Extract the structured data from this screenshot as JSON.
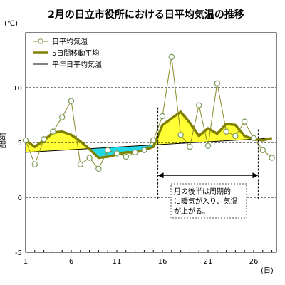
{
  "chart_data": {
    "type": "line",
    "title": "2月の日立市役所における日平均気温の推移",
    "unit_y": "(℃)",
    "unit_x": "(日)",
    "ylabel": "気温",
    "ylim": [
      -5,
      15
    ],
    "yticks": [
      -5,
      0,
      5,
      10
    ],
    "xlim": [
      1,
      28.5
    ],
    "xticks": [
      1,
      6,
      11,
      16,
      21,
      26
    ],
    "grid": "dashed horizontal at 0, 5, 10",
    "legend_position": "top-left",
    "series": [
      {
        "name": "日平均気温",
        "color": "#8a8a2a",
        "marker": "circle",
        "x": [
          1,
          2,
          3,
          4,
          5,
          6,
          7,
          8,
          9,
          10,
          11,
          12,
          13,
          14,
          15,
          16,
          17,
          18,
          19,
          20,
          21,
          22,
          23,
          24,
          25,
          26,
          27,
          28
        ],
        "values": [
          5.2,
          3.0,
          5.3,
          6.0,
          7.3,
          8.8,
          3.0,
          3.6,
          2.6,
          4.3,
          4.0,
          3.7,
          4.1,
          4.3,
          5.2,
          7.4,
          12.8,
          5.7,
          4.6,
          8.4,
          4.7,
          10.4,
          6.0,
          5.6,
          6.9,
          5.4,
          4.3,
          3.6
        ]
      },
      {
        "name": "5日間移動平均",
        "color": "#808000",
        "x": [
          1,
          2,
          3,
          4,
          5,
          6,
          7,
          8,
          9,
          10,
          11,
          12,
          13,
          14,
          15,
          16,
          17,
          18,
          19,
          20,
          21,
          22,
          23,
          24,
          25,
          26,
          27,
          28
        ],
        "values": [
          5.2,
          4.6,
          5.2,
          5.9,
          6.0,
          5.7,
          5.1,
          4.4,
          3.6,
          3.7,
          3.9,
          4.1,
          4.1,
          4.3,
          4.6,
          6.6,
          7.2,
          7.8,
          6.8,
          5.6,
          6.3,
          5.8,
          6.7,
          6.6,
          5.6,
          5.3,
          5.2,
          5.4
        ]
      },
      {
        "name": "平年日平均気温",
        "color": "#000000",
        "x": [
          1,
          28
        ],
        "values": [
          4.1,
          5.4
        ]
      }
    ],
    "fill": {
      "above_normal_color": "#ffff33",
      "below_normal_color": "#22d8e8"
    },
    "annotation": {
      "lines": [
        "月の後半は周期的",
        "に暖気が入り、気温",
        "が上がる。"
      ],
      "arrow_from_x": 15.5,
      "arrow_to_x": 26.5,
      "arrow_y": 2.0
    }
  }
}
